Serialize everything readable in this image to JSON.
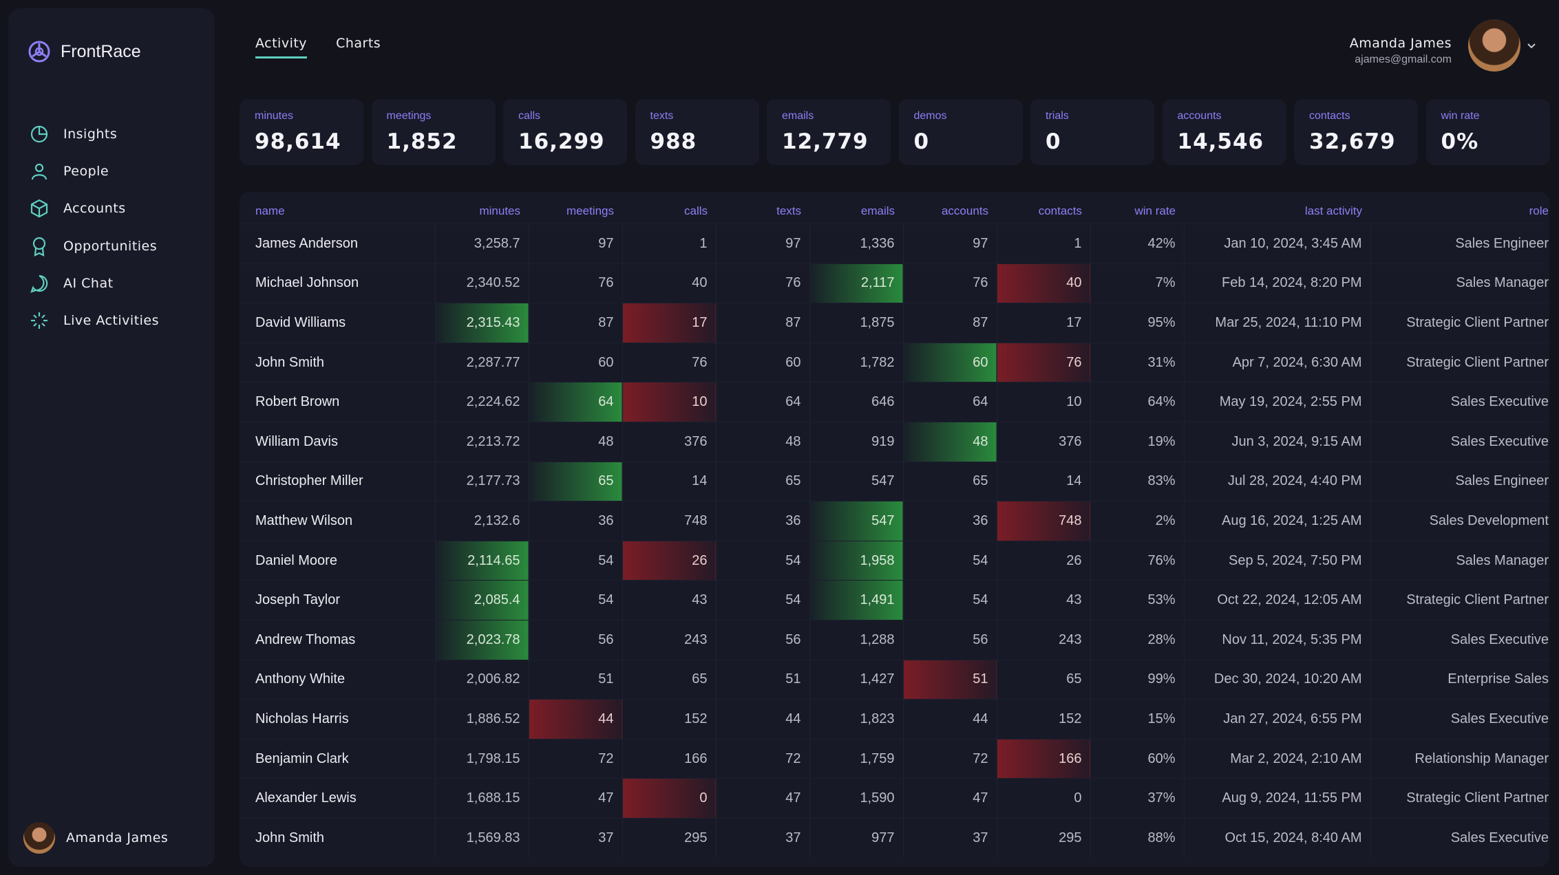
{
  "sidebar": {
    "brand": "FrontRace",
    "nav": [
      "Insights",
      "People",
      "Accounts",
      "Opportunities",
      "AI Chat",
      "Live Activities"
    ],
    "user": "Amanda James"
  },
  "header": {
    "tabs": [
      "Activity",
      "Charts"
    ],
    "active_tab": 0,
    "user_name": "Amanda James",
    "user_email": "ajames@gmail.com"
  },
  "stats": [
    {
      "label": "minutes",
      "value": "98,614"
    },
    {
      "label": "meetings",
      "value": "1,852"
    },
    {
      "label": "calls",
      "value": "16,299"
    },
    {
      "label": "texts",
      "value": "988"
    },
    {
      "label": "emails",
      "value": "12,779"
    },
    {
      "label": "demos",
      "value": "0"
    },
    {
      "label": "trials",
      "value": "0"
    },
    {
      "label": "accounts",
      "value": "14,546"
    },
    {
      "label": "contacts",
      "value": "32,679"
    },
    {
      "label": "win rate",
      "value": "0%"
    }
  ],
  "table": {
    "columns": [
      "name",
      "minutes",
      "meetings",
      "calls",
      "texts",
      "emails",
      "accounts",
      "contacts",
      "win rate",
      "last activity",
      "role"
    ],
    "rows": [
      [
        "James Anderson",
        "3,258.7",
        "97",
        "1",
        "97",
        "1,336",
        "97",
        "1",
        "42%",
        "Jan 10, 2024, 3:45 AM",
        "Sales Engineer"
      ],
      [
        "Michael Johnson",
        "2,340.52",
        "76",
        "40",
        "76",
        "2,117",
        "76",
        "40",
        "7%",
        "Feb 14, 2024, 8:20 PM",
        "Sales Manager"
      ],
      [
        "David Williams",
        "2,315.43",
        "87",
        "17",
        "87",
        "1,875",
        "87",
        "17",
        "95%",
        "Mar 25, 2024, 11:10 PM",
        "Strategic Client Partner"
      ],
      [
        "John Smith",
        "2,287.77",
        "60",
        "76",
        "60",
        "1,782",
        "60",
        "76",
        "31%",
        "Apr 7, 2024, 6:30 AM",
        "Strategic Client Partner"
      ],
      [
        "Robert Brown",
        "2,224.62",
        "64",
        "10",
        "64",
        "646",
        "64",
        "10",
        "64%",
        "May 19, 2024, 2:55 PM",
        "Sales Executive"
      ],
      [
        "William Davis",
        "2,213.72",
        "48",
        "376",
        "48",
        "919",
        "48",
        "376",
        "19%",
        "Jun 3, 2024, 9:15 AM",
        "Sales Executive"
      ],
      [
        "Christopher Miller",
        "2,177.73",
        "65",
        "14",
        "65",
        "547",
        "65",
        "14",
        "83%",
        "Jul 28, 2024, 4:40 PM",
        "Sales Engineer"
      ],
      [
        "Matthew Wilson",
        "2,132.6",
        "36",
        "748",
        "36",
        "547",
        "36",
        "748",
        "2%",
        "Aug 16, 2024, 1:25 AM",
        "Sales Development"
      ],
      [
        "Daniel Moore",
        "2,114.65",
        "54",
        "26",
        "54",
        "1,958",
        "54",
        "26",
        "76%",
        "Sep 5, 2024, 7:50 PM",
        "Sales Manager"
      ],
      [
        "Joseph Taylor",
        "2,085.4",
        "54",
        "43",
        "54",
        "1,491",
        "54",
        "43",
        "53%",
        "Oct 22, 2024, 12:05 AM",
        "Strategic Client Partner"
      ],
      [
        "Andrew Thomas",
        "2,023.78",
        "56",
        "243",
        "56",
        "1,288",
        "56",
        "243",
        "28%",
        "Nov 11, 2024, 5:35 PM",
        "Sales Executive"
      ],
      [
        "Anthony White",
        "2,006.82",
        "51",
        "65",
        "51",
        "1,427",
        "51",
        "65",
        "99%",
        "Dec 30, 2024, 10:20 AM",
        "Enterprise Sales"
      ],
      [
        "Nicholas Harris",
        "1,886.52",
        "44",
        "152",
        "44",
        "1,823",
        "44",
        "152",
        "15%",
        "Jan 27, 2024, 6:55 PM",
        "Sales Executive"
      ],
      [
        "Benjamin Clark",
        "1,798.15",
        "72",
        "166",
        "72",
        "1,759",
        "72",
        "166",
        "60%",
        "Mar 2, 2024, 2:10 AM",
        "Relationship Manager"
      ],
      [
        "Alexander Lewis",
        "1,688.15",
        "47",
        "0",
        "47",
        "1,590",
        "47",
        "0",
        "37%",
        "Aug 9, 2024, 11:55 PM",
        "Strategic Client Partner"
      ],
      [
        "John Smith",
        "1,569.83",
        "37",
        "295",
        "37",
        "977",
        "37",
        "295",
        "88%",
        "Oct 15, 2024, 8:40 AM",
        "Sales Executive"
      ]
    ],
    "highlights": [
      [
        1,
        5,
        "green"
      ],
      [
        1,
        7,
        "red"
      ],
      [
        2,
        1,
        "green"
      ],
      [
        2,
        3,
        "red"
      ],
      [
        3,
        6,
        "green"
      ],
      [
        3,
        7,
        "red"
      ],
      [
        4,
        2,
        "green"
      ],
      [
        4,
        3,
        "red"
      ],
      [
        5,
        6,
        "green"
      ],
      [
        6,
        2,
        "green"
      ],
      [
        7,
        5,
        "green"
      ],
      [
        7,
        7,
        "red"
      ],
      [
        8,
        1,
        "green"
      ],
      [
        8,
        3,
        "red"
      ],
      [
        8,
        5,
        "green"
      ],
      [
        9,
        1,
        "green"
      ],
      [
        9,
        5,
        "green"
      ],
      [
        10,
        1,
        "green"
      ],
      [
        11,
        6,
        "red"
      ],
      [
        12,
        2,
        "red"
      ],
      [
        13,
        7,
        "red"
      ],
      [
        14,
        3,
        "red"
      ]
    ]
  }
}
